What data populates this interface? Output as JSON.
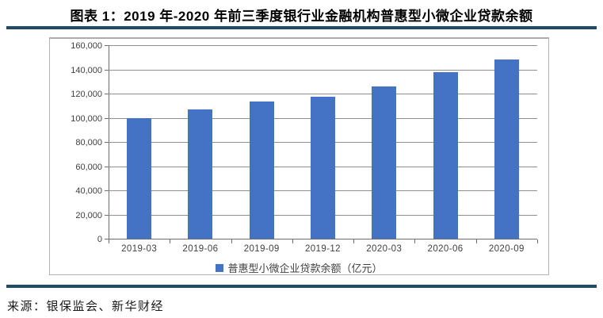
{
  "header": {
    "title": "图表 1：2019 年-2020 年前三季度银行业金融机构普惠型小微企业贷款余额"
  },
  "footer": {
    "source": "来源：银保监会、新华财经"
  },
  "colors": {
    "bar": "#4472C4",
    "divider": "#204A68",
    "gridline": "#8f8f8f",
    "axis": "#6f6f6f",
    "label": "#3f3f3f"
  },
  "chart_data": {
    "type": "bar",
    "title": "",
    "categories": [
      "2019-03",
      "2019-06",
      "2019-09",
      "2019-12",
      "2020-03",
      "2020-06",
      "2020-09"
    ],
    "series": [
      {
        "name": "普惠型小微企业贷款余额（亿元）",
        "values": [
          99700,
          106900,
          113600,
          117200,
          125900,
          137900,
          148000
        ]
      }
    ],
    "xlabel": "",
    "ylabel": "",
    "ylim": [
      0,
      160000
    ],
    "ytick_step": 20000,
    "ytick_labels": [
      "0",
      "20,000",
      "40,000",
      "60,000",
      "80,000",
      "100,000",
      "120,000",
      "140,000",
      "160,000"
    ],
    "grid": "horizontal",
    "legend_position": "bottom"
  }
}
